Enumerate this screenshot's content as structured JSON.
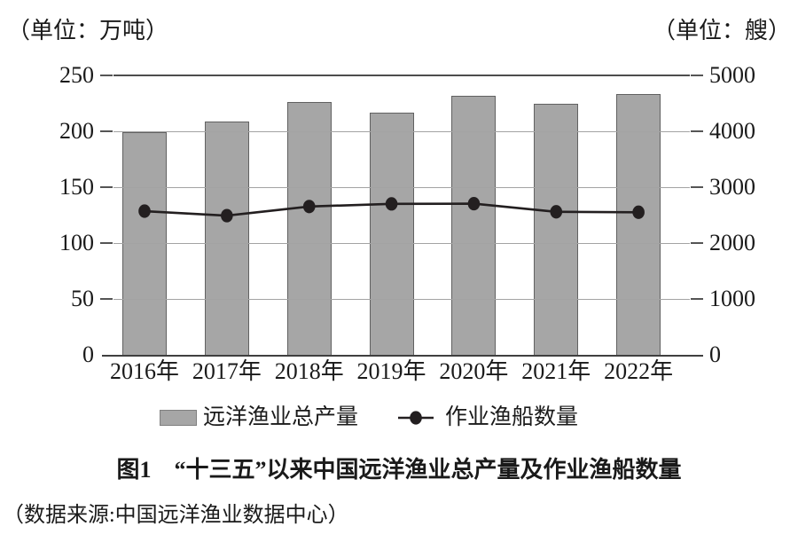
{
  "title": "图1　“十三五”以来中国远洋渔业总产量及作业渔船数量",
  "source": "（数据来源:中国远洋渔业数据中心）",
  "legend": {
    "bar_label": "远洋渔业总产量",
    "line_label": "作业渔船数量"
  },
  "colors": {
    "bar_fill": "#a6a6a6",
    "bar_border": "#616161",
    "line": "#231f20",
    "grid": "#a3a3a3",
    "axis": "#3f3f3f"
  },
  "chart_data": {
    "type": "bar",
    "subtype": "dual-axis bar + line",
    "title": "图1　“十三五”以来中国远洋渔业总产量及作业渔船数量",
    "categories": [
      "2016年",
      "2017年",
      "2018年",
      "2019年",
      "2020年",
      "2021年",
      "2022年"
    ],
    "series": [
      {
        "name": "远洋渔业总产量",
        "type": "bar",
        "axis": "left",
        "unit": "万吨",
        "values": [
          199,
          209,
          226,
          217,
          232,
          225,
          233
        ]
      },
      {
        "name": "作业渔船数量",
        "type": "line",
        "axis": "right",
        "unit": "艘",
        "values": [
          2571,
          2491,
          2654,
          2701,
          2705,
          2559,
          2551
        ]
      }
    ],
    "left_axis": {
      "unit_label": "（单位：万吨）",
      "min": 0,
      "max": 250,
      "ticks": [
        "0",
        "50",
        "100",
        "150",
        "200",
        "250"
      ]
    },
    "right_axis": {
      "unit_label": "（单位：艘）",
      "min": 0,
      "max": 5000,
      "ticks": [
        "0",
        "1000",
        "2000",
        "3000",
        "4000",
        "5000"
      ]
    },
    "grid": true,
    "legend_position": "bottom"
  }
}
